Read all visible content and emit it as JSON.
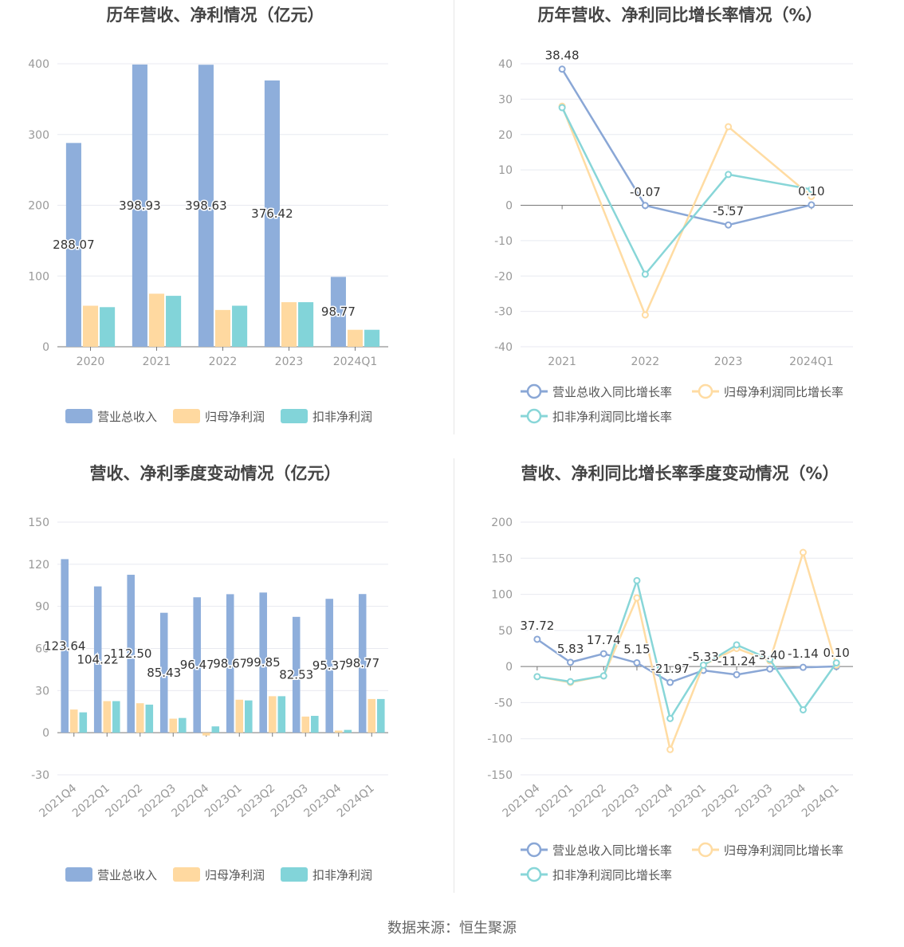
{
  "colors": {
    "revenue": "#8eaedb",
    "net_profit": "#ffd9a0",
    "deducted_profit": "#82d4d9",
    "revenue_line": "#8aa7d6",
    "net_line": "#ffdca3",
    "deducted_line": "#88d6d8",
    "axis_text": "#999999",
    "grid": "#e8eaf0",
    "title": "#444444"
  },
  "source_text": "数据来源：恒生聚源",
  "chart_data": [
    {
      "id": "annual-bar",
      "type": "bar",
      "title": "历年营收、净利情况（亿元）",
      "categories": [
        "2020",
        "2021",
        "2022",
        "2023",
        "2024Q1"
      ],
      "ylim": [
        0,
        400
      ],
      "yticks": [
        0,
        100,
        200,
        300,
        400
      ],
      "series": [
        {
          "name": "营业总收入",
          "values": [
            288.07,
            398.93,
            398.63,
            376.42,
            98.77
          ],
          "labels": [
            "288.07",
            "398.93",
            "398.63",
            "376.42",
            "98.77"
          ]
        },
        {
          "name": "归母净利润",
          "values": [
            58,
            75,
            52,
            63,
            24
          ]
        },
        {
          "name": "扣非净利润",
          "values": [
            56,
            72,
            58,
            63,
            24
          ]
        }
      ],
      "grid": true,
      "legend": "bottom"
    },
    {
      "id": "annual-line",
      "type": "line",
      "title": "历年营收、净利同比增长率情况（%）",
      "categories": [
        "2021",
        "2022",
        "2023",
        "2024Q1"
      ],
      "ylim": [
        -40,
        40
      ],
      "yticks": [
        -40,
        -30,
        -20,
        -10,
        0,
        10,
        20,
        30,
        40
      ],
      "series": [
        {
          "name": "营业总收入同比增长率",
          "values": [
            38.48,
            -0.07,
            -5.57,
            0.1
          ],
          "labels": [
            "38.48",
            "-0.07",
            "-5.57",
            "0.10"
          ]
        },
        {
          "name": "归母净利润同比增长率",
          "values": [
            28,
            -31,
            22.2,
            2.5
          ]
        },
        {
          "name": "扣非净利润同比增长率",
          "values": [
            27.6,
            -19.5,
            8.7,
            4.5
          ]
        }
      ],
      "grid": true,
      "legend": "bottom"
    },
    {
      "id": "quarter-bar",
      "type": "bar",
      "title": "营收、净利季度变动情况（亿元）",
      "categories": [
        "2021Q4",
        "2022Q1",
        "2022Q2",
        "2022Q3",
        "2022Q4",
        "2023Q1",
        "2023Q2",
        "2023Q3",
        "2023Q4",
        "2024Q1"
      ],
      "ylim": [
        -30,
        150
      ],
      "yticks": [
        -30,
        0,
        30,
        60,
        90,
        120,
        150
      ],
      "series": [
        {
          "name": "营业总收入",
          "values": [
            123.64,
            104.22,
            112.5,
            85.43,
            96.47,
            98.67,
            99.85,
            82.53,
            95.37,
            98.77
          ],
          "labels": [
            "123.64",
            "104.22",
            "112.50",
            "85.43",
            "96.47",
            "98.67",
            "99.85",
            "82.53",
            "95.37",
            "98.77"
          ]
        },
        {
          "name": "归母净利润",
          "values": [
            16.5,
            22.5,
            21,
            10,
            -2,
            23.5,
            26,
            11.5,
            1.5,
            24
          ]
        },
        {
          "name": "扣非净利润",
          "values": [
            14.5,
            22.5,
            20,
            10.5,
            4.5,
            23,
            26,
            12,
            2,
            24
          ]
        }
      ],
      "grid": true,
      "legend": "bottom"
    },
    {
      "id": "quarter-line",
      "type": "line",
      "title": "营收、净利同比增长率季度变动情况（%）",
      "categories": [
        "2021Q4",
        "2022Q1",
        "2022Q2",
        "2022Q3",
        "2022Q4",
        "2023Q1",
        "2023Q2",
        "2023Q3",
        "2023Q4",
        "2024Q1"
      ],
      "ylim": [
        -150,
        200
      ],
      "yticks": [
        -150,
        -100,
        -50,
        0,
        50,
        100,
        150,
        200
      ],
      "series": [
        {
          "name": "营业总收入同比增长率",
          "values": [
            37.72,
            5.83,
            17.74,
            5.15,
            -21.97,
            -5.33,
            -11.24,
            -3.4,
            -1.14,
            0.1
          ],
          "labels": [
            "37.72",
            "5.83",
            "17.74",
            "5.15",
            "-21.97",
            "-5.33",
            "-11.24",
            "-3.40",
            "-1.14",
            "0.10"
          ]
        },
        {
          "name": "归母净利润同比增长率",
          "values": [
            -14,
            -22,
            -13,
            95,
            -115,
            2,
            25,
            8,
            158,
            2
          ]
        },
        {
          "name": "扣非净利润同比增长率",
          "values": [
            -14,
            -21,
            -13,
            119,
            -72,
            2,
            30,
            10,
            -60,
            5
          ]
        }
      ],
      "grid": true,
      "legend": "bottom"
    }
  ]
}
